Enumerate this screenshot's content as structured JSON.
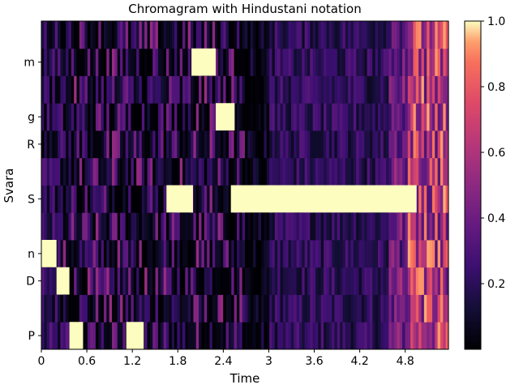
{
  "chart_data": {
    "type": "heatmap",
    "title": "Chromagram with Hindustani notation",
    "xlabel": "Time",
    "ylabel": "Svara",
    "x_ticks": [
      "0",
      "0.6",
      "1.2",
      "1.8",
      "2.4",
      "3",
      "3.6",
      "4.2",
      "4.8"
    ],
    "x_tick_values": [
      0,
      0.6,
      1.2,
      1.8,
      2.4,
      3.0,
      3.6,
      4.2,
      4.8
    ],
    "xlim": [
      0,
      5.37
    ],
    "rows_bottom_to_top": [
      "P",
      "",
      "D",
      "n",
      "",
      "S",
      "",
      "R",
      "g",
      "",
      "m",
      ""
    ],
    "y_tick_labels": [
      "P",
      "D",
      "n",
      "S",
      "R",
      "g",
      "m"
    ],
    "colorbar": {
      "ticks": [
        "0.2",
        "0.4",
        "0.6",
        "0.8",
        "1.0"
      ],
      "tick_values": [
        0.2,
        0.4,
        0.6,
        0.8,
        1.0
      ],
      "range": [
        0,
        1
      ],
      "colormap": "magma"
    },
    "highlights": [
      {
        "row": "S",
        "from": 2.5,
        "to": 4.95,
        "value": 1.0
      },
      {
        "row": "S",
        "from": 1.65,
        "to": 2.0,
        "value": 1.0
      },
      {
        "row": "m",
        "from": 1.98,
        "to": 2.3,
        "value": 1.0
      },
      {
        "row": "g",
        "from": 2.3,
        "to": 2.55,
        "value": 1.0
      },
      {
        "row": "n",
        "from": 0.0,
        "to": 0.2,
        "value": 1.0
      },
      {
        "row": "D",
        "from": 0.2,
        "to": 0.37,
        "value": 1.0
      },
      {
        "row": "P",
        "from": 0.37,
        "to": 0.55,
        "value": 1.0
      },
      {
        "row": "P",
        "from": 1.12,
        "to": 1.35,
        "value": 1.0
      }
    ]
  }
}
